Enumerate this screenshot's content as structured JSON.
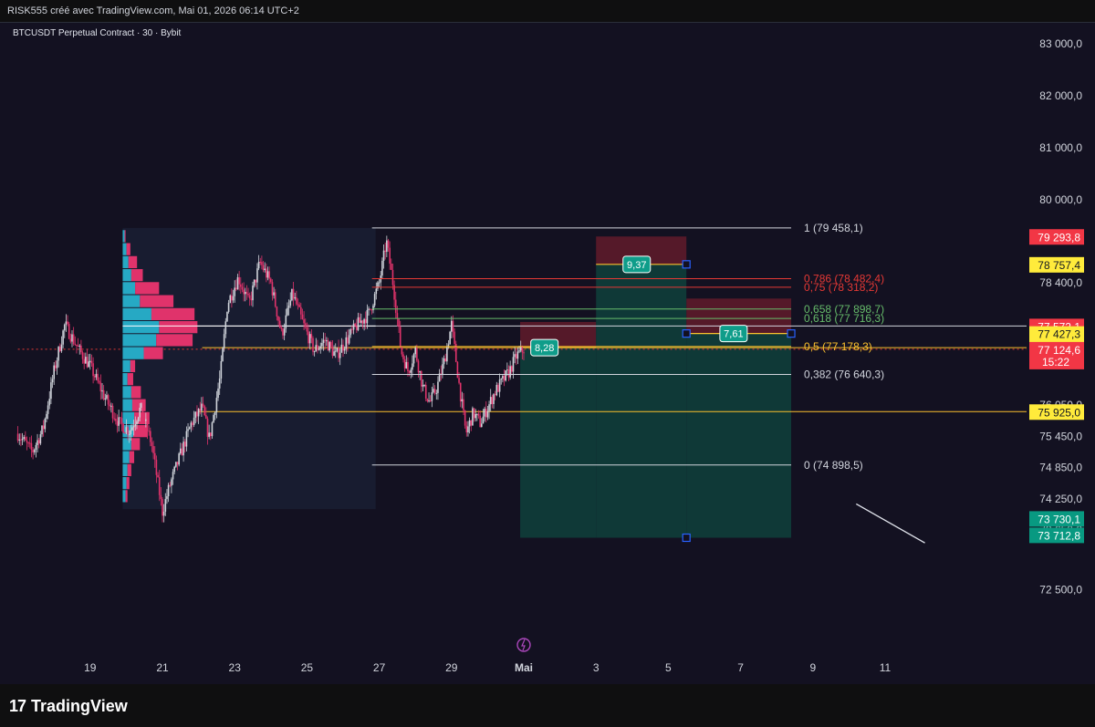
{
  "header": {
    "attribution": "RISK555 créé avec TradingView.com, Mai 01, 2026 06:14 UTC+2",
    "symbol_line": "BTCUSDT Perpetual Contract · 30 · Bybit"
  },
  "footer": {
    "logo_mark": "17",
    "logo_text": "TradingView"
  },
  "colors": {
    "background": "#131121",
    "bull": "#cfd3da",
    "bear": "#e0336b",
    "fib_white": "#d1d4dc",
    "fib_red": "#e53935",
    "fib_green": "#66bb6a",
    "fib_yellow": "#fbc02d",
    "profit_zone": "#0f3d3a",
    "stop_zone": "#5b1a2a",
    "badge": "#0f9d8a",
    "profile_cyan": "#26a9c4",
    "profile_pink": "#e0336b"
  },
  "chart_data": {
    "type": "candlestick",
    "symbol": "BTCUSDT Perpetual Contract",
    "interval": "30",
    "exchange": "Bybit",
    "ylim": [
      72000,
      83500
    ],
    "price_ticks": [
      "83 000,0",
      "82 000,0",
      "81 000,0",
      "80 000,0",
      "78 400,0",
      "76 050,0",
      "75 450,0",
      "74 850,0",
      "74 250,0",
      "73 650,0",
      "72 500,0"
    ],
    "price_tick_values": [
      83000,
      82000,
      81000,
      80000,
      78400,
      76050,
      75450,
      74850,
      74250,
      73650,
      72500
    ],
    "date_ticks": [
      "19",
      "21",
      "23",
      "25",
      "27",
      "29",
      "Mai",
      "3",
      "5",
      "7",
      "9",
      "11"
    ],
    "date_tick_days": [
      -12,
      -10,
      -8,
      -6,
      -4,
      -2,
      0,
      2,
      4,
      6,
      8,
      10
    ],
    "price_path": [
      [
        -14.0,
        75500
      ],
      [
        -13.6,
        75150
      ],
      [
        -13.3,
        75600
      ],
      [
        -13.0,
        76700
      ],
      [
        -12.7,
        77600
      ],
      [
        -12.3,
        77100
      ],
      [
        -12.0,
        76800
      ],
      [
        -11.6,
        76200
      ],
      [
        -11.2,
        75700
      ],
      [
        -10.9,
        75550
      ],
      [
        -10.6,
        76000
      ],
      [
        -10.3,
        75300
      ],
      [
        -10.0,
        74000
      ],
      [
        -9.8,
        74500
      ],
      [
        -9.5,
        75100
      ],
      [
        -9.2,
        75700
      ],
      [
        -8.9,
        76000
      ],
      [
        -8.7,
        75400
      ],
      [
        -8.4,
        76600
      ],
      [
        -8.2,
        78000
      ],
      [
        -7.9,
        78500
      ],
      [
        -7.6,
        78000
      ],
      [
        -7.3,
        78800
      ],
      [
        -7.0,
        78400
      ],
      [
        -6.7,
        77400
      ],
      [
        -6.4,
        78200
      ],
      [
        -6.1,
        77600
      ],
      [
        -5.8,
        77100
      ],
      [
        -5.5,
        77300
      ],
      [
        -5.2,
        77000
      ],
      [
        -4.9,
        77300
      ],
      [
        -4.6,
        77600
      ],
      [
        -4.3,
        77800
      ],
      [
        -4.0,
        78400
      ],
      [
        -3.8,
        79200
      ],
      [
        -3.6,
        78300
      ],
      [
        -3.4,
        77100
      ],
      [
        -3.2,
        76700
      ],
      [
        -3.0,
        77100
      ],
      [
        -2.8,
        76400
      ],
      [
        -2.6,
        76100
      ],
      [
        -2.4,
        76400
      ],
      [
        -2.2,
        76900
      ],
      [
        -2.0,
        77600
      ],
      [
        -1.8,
        76500
      ],
      [
        -1.6,
        75500
      ],
      [
        -1.4,
        75900
      ],
      [
        -1.2,
        75700
      ],
      [
        -1.0,
        76000
      ],
      [
        -0.8,
        76300
      ],
      [
        -0.6,
        76500
      ],
      [
        -0.4,
        76700
      ],
      [
        -0.2,
        77000
      ],
      [
        0.0,
        77124.6
      ]
    ],
    "volume_profile": {
      "poc": 77572.1,
      "bins": [
        {
          "price": 79300,
          "up": 2,
          "down": 1
        },
        {
          "price": 79050,
          "up": 4,
          "down": 4
        },
        {
          "price": 78800,
          "up": 6,
          "down": 9
        },
        {
          "price": 78550,
          "up": 9,
          "down": 12
        },
        {
          "price": 78300,
          "up": 13,
          "down": 25
        },
        {
          "price": 78050,
          "up": 18,
          "down": 35
        },
        {
          "price": 77800,
          "up": 30,
          "down": 45
        },
        {
          "price": 77550,
          "up": 38,
          "down": 40
        },
        {
          "price": 77300,
          "up": 35,
          "down": 38
        },
        {
          "price": 77050,
          "up": 22,
          "down": 20
        },
        {
          "price": 76800,
          "up": 8,
          "down": 5
        },
        {
          "price": 76550,
          "up": 5,
          "down": 6
        },
        {
          "price": 76300,
          "up": 9,
          "down": 10
        },
        {
          "price": 76050,
          "up": 10,
          "down": 14
        },
        {
          "price": 75800,
          "up": 12,
          "down": 16
        },
        {
          "price": 75550,
          "up": 11,
          "down": 15
        },
        {
          "price": 75300,
          "up": 9,
          "down": 9
        },
        {
          "price": 75050,
          "up": 7,
          "down": 5
        },
        {
          "price": 74800,
          "up": 5,
          "down": 4
        },
        {
          "price": 74550,
          "up": 4,
          "down": 3
        },
        {
          "price": 74300,
          "up": 3,
          "down": 2
        }
      ]
    },
    "fib_levels": [
      {
        "ratio": "1",
        "price": 79458.1,
        "label": "1 (79 458,1)",
        "color": "#d1d4dc"
      },
      {
        "ratio": "0.786",
        "price": 78482.4,
        "label": "0,786 (78 482,4)",
        "color": "#e53935"
      },
      {
        "ratio": "0.75",
        "price": 78318.2,
        "label": "0,75 (78 318,2)",
        "color": "#e53935"
      },
      {
        "ratio": "0.658",
        "price": 77898.7,
        "label": "0,658 (77 898,7)",
        "color": "#66bb6a"
      },
      {
        "ratio": "0.618",
        "price": 77716.3,
        "label": "0,618 (77 716,3)",
        "color": "#66bb6a"
      },
      {
        "ratio": "0.5",
        "price": 77178.3,
        "label": "0,5 (77 178,3)",
        "color": "#fbc02d"
      },
      {
        "ratio": "0.382",
        "price": 76640.3,
        "label": "0,382 (76 640,3)",
        "color": "#d1d4dc"
      },
      {
        "ratio": "0",
        "price": 74898.5,
        "label": "0 (74 898,5)",
        "color": "#d1d4dc"
      }
    ],
    "horizontal_lines": [
      {
        "price": 77572.1,
        "color": "#d1d4dc",
        "from_day": -10.2
      },
      {
        "price": 77156.4,
        "color": "#fbc02d",
        "from_day": -8.9
      },
      {
        "price": 75925.0,
        "color": "#fbc02d",
        "from_day": -9.0
      },
      {
        "price": 77124.6,
        "color": "#e53935",
        "from_day": -14.0,
        "dashed": true
      }
    ],
    "positions": [
      {
        "entry": 77156.4,
        "stop": 77650,
        "target": 73500,
        "from_day": -0.1,
        "to_day": 2.0,
        "ratio": "8,28"
      },
      {
        "entry": 78757.4,
        "stop": 79293.8,
        "target": 73500,
        "from_day": 2.0,
        "to_day": 4.5,
        "ratio": "9,37"
      },
      {
        "entry": 77427.3,
        "stop": 78100,
        "target": 73500,
        "from_day": 4.5,
        "to_day": 7.4,
        "ratio": "7,61"
      }
    ],
    "trend_line": {
      "from": [
        9.2,
        74150
      ],
      "to": [
        11.1,
        73400
      ]
    },
    "price_labels": [
      {
        "text": "79 293,8",
        "price": 79293.8,
        "bg": "#f23645",
        "fg": "#ffffff"
      },
      {
        "text": "78 757,4",
        "price": 78757.4,
        "bg": "#ffeb3b",
        "fg": "#131722"
      },
      {
        "text": "77 572,1",
        "price": 77572.1,
        "bg": "#f23645",
        "fg": "#ffffff"
      },
      {
        "text": "77 427,3",
        "price": 77427.3,
        "bg": "#ffeb3b",
        "fg": "#131722"
      },
      {
        "text": "77 156,4",
        "price": 77156.4,
        "bg": "#ffeb3b",
        "fg": "#131722"
      },
      {
        "text": "77 124,6",
        "sub": "15:22",
        "price": 77124.6,
        "bg": "#f23645",
        "fg": "#ffffff"
      },
      {
        "text": "75 925,0",
        "price": 75925.0,
        "bg": "#ffeb3b",
        "fg": "#131722"
      },
      {
        "text": "73 730,1",
        "price": 73730.1,
        "bg": "#089981",
        "fg": "#ffffff"
      },
      {
        "text": "73 712,8",
        "price": 73712.8,
        "bg": "#089981",
        "fg": "#ffffff"
      }
    ],
    "last_price": 77124.6,
    "countdown": "15:22"
  }
}
